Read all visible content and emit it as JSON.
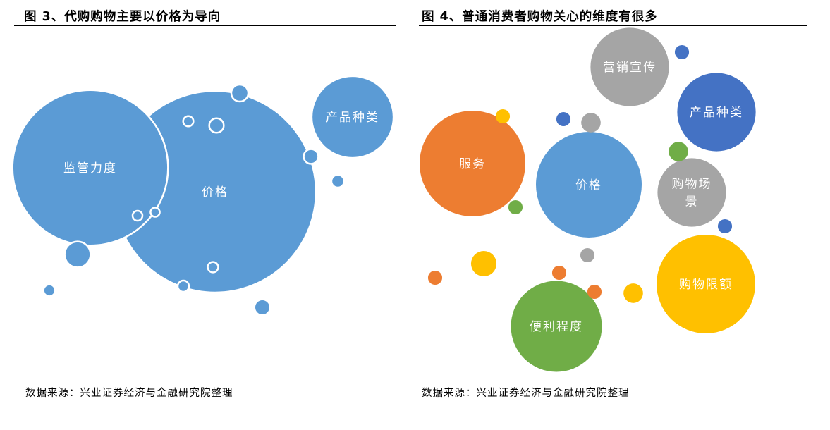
{
  "figures": [
    {
      "title": "图 3、代购购物主要以价格为导向",
      "source": "数据来源：兴业证券经济与金融研究院整理"
    },
    {
      "title": "图 4、普通消费者购物关心的维度有很多",
      "source": "数据来源：兴业证券经济与金融研究院整理"
    }
  ],
  "chart_data": [
    {
      "type": "bubble",
      "title": "图 3、代购购物主要以价格为导向",
      "bubbles": [
        {
          "label": "价格",
          "size": 1.0,
          "color": "#5B9BD5"
        },
        {
          "label": "监管力度",
          "size": 0.595,
          "color": "#5B9BD5"
        },
        {
          "label": "产品种类",
          "size": 0.165,
          "color": "#5B9BD5"
        },
        {
          "label": "",
          "size": 0.0165,
          "color": "#5B9BD5"
        },
        {
          "label": "",
          "size": 0.0071,
          "color": "#5B9BD5"
        },
        {
          "label": "",
          "size": 0.0062,
          "color": "#5B9BD5"
        },
        {
          "label": "",
          "size": 0.0053,
          "color": "#5B9BD5"
        },
        {
          "label": "",
          "size": 0.0052,
          "color": "#5B9BD5"
        },
        {
          "label": "",
          "size": 0.004,
          "color": "#5B9BD5"
        },
        {
          "label": "",
          "size": 0.0034,
          "color": "#5B9BD5"
        },
        {
          "label": "",
          "size": 0.0031,
          "color": "#5B9BD5"
        },
        {
          "label": "",
          "size": 0.0027,
          "color": "#5B9BD5"
        },
        {
          "label": "",
          "size": 0.0026,
          "color": "#5B9BD5"
        },
        {
          "label": "",
          "size": 0.0024,
          "color": "#5B9BD5"
        },
        {
          "label": "",
          "size": 0.0021,
          "color": "#5B9BD5"
        }
      ]
    },
    {
      "type": "bubble",
      "title": "图 4、普通消费者购物关心的维度有很多",
      "bubbles": [
        {
          "label": "价格",
          "size": 1.0,
          "color": "#5B9BD5"
        },
        {
          "label": "服务",
          "size": 1.0,
          "color": "#ED7D31"
        },
        {
          "label": "购物限额",
          "size": 0.87,
          "color": "#FFC000"
        },
        {
          "label": "便利程度",
          "size": 0.74,
          "color": "#70AD47"
        },
        {
          "label": "营销宣传",
          "size": 0.55,
          "color": "#A5A5A5"
        },
        {
          "label": "产品种类",
          "size": 0.55,
          "color": "#4472C4"
        },
        {
          "label": "购物场景",
          "size": 0.42,
          "color": "#A5A5A5"
        },
        {
          "label": "",
          "size": 0.058,
          "color": "#FFC000"
        },
        {
          "label": "",
          "size": 0.034,
          "color": "#FFC000"
        },
        {
          "label": "",
          "size": 0.034,
          "color": "#70AD47"
        },
        {
          "label": "",
          "size": 0.034,
          "color": "#A5A5A5"
        },
        {
          "label": "",
          "size": 0.018,
          "color": "#4472C4"
        },
        {
          "label": "",
          "size": 0.018,
          "color": "#4472C4"
        },
        {
          "label": "",
          "size": 0.018,
          "color": "#4472C4"
        },
        {
          "label": "",
          "size": 0.018,
          "color": "#ED7D31"
        },
        {
          "label": "",
          "size": 0.018,
          "color": "#ED7D31"
        },
        {
          "label": "",
          "size": 0.018,
          "color": "#ED7D31"
        },
        {
          "label": "",
          "size": 0.018,
          "color": "#FFC000"
        },
        {
          "label": "",
          "size": 0.018,
          "color": "#A5A5A5"
        },
        {
          "label": "",
          "size": 0.018,
          "color": "#70AD47"
        }
      ]
    }
  ]
}
